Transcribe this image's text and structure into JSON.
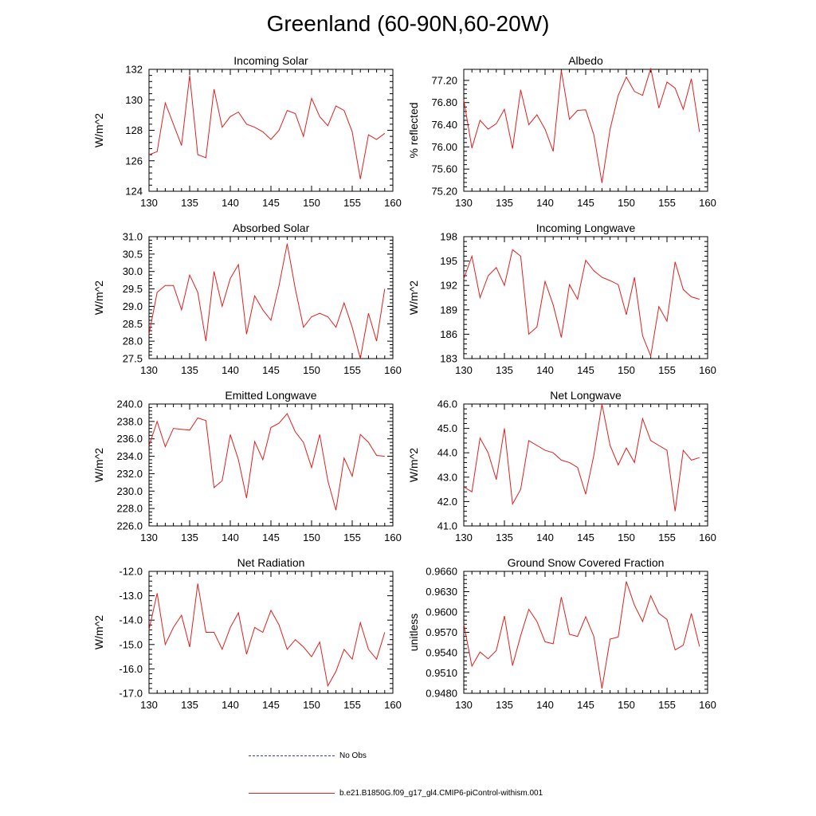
{
  "title": "Greenland (60-90N,60-20W)",
  "legend": {
    "obs_label": "No Obs",
    "obs_color": "#3a3ab0",
    "model_label": "b.e21.B1850G.f09_g17_gl4.CMIP6-piControl-withism.001",
    "model_color": "#e0201e"
  },
  "chart_data": [
    {
      "type": "line",
      "title": "Incoming Solar",
      "ylabel": "W/m^2",
      "xlabel": "",
      "xlim": [
        130,
        160
      ],
      "ylim": [
        124,
        132
      ],
      "xticks": [
        "130",
        "135",
        "140",
        "145",
        "150",
        "155",
        "160"
      ],
      "yticks": [
        "124",
        "126",
        "128",
        "130",
        "132"
      ],
      "x": [
        130,
        131,
        132,
        133,
        134,
        135,
        136,
        137,
        138,
        139,
        140,
        141,
        142,
        143,
        144,
        145,
        146,
        147,
        148,
        149,
        150,
        151,
        152,
        153,
        154,
        155,
        156,
        157,
        158,
        159
      ],
      "series": [
        {
          "values": [
            126.4,
            126.6,
            129.8,
            128.4,
            127.0,
            131.6,
            126.4,
            126.2,
            130.7,
            128.2,
            128.9,
            129.2,
            128.4,
            128.2,
            127.9,
            127.4,
            128.0,
            129.3,
            129.1,
            127.6,
            130.1,
            128.9,
            128.3,
            129.6,
            129.3,
            127.9,
            124.8,
            127.7,
            127.4,
            127.8
          ]
        }
      ]
    },
    {
      "type": "line",
      "title": "Albedo",
      "ylabel": "% reflected",
      "xlabel": "",
      "xlim": [
        130,
        160
      ],
      "ylim": [
        75.2,
        77.4
      ],
      "xticks": [
        "130",
        "135",
        "140",
        "145",
        "150",
        "155",
        "160"
      ],
      "yticks": [
        "75.20",
        "75.60",
        "76.00",
        "76.40",
        "76.80",
        "77.20"
      ],
      "x": [
        130,
        131,
        132,
        133,
        134,
        135,
        136,
        137,
        138,
        139,
        140,
        141,
        142,
        143,
        144,
        145,
        146,
        147,
        148,
        149,
        150,
        151,
        152,
        153,
        154,
        155,
        156,
        157,
        158,
        159
      ],
      "series": [
        {
          "values": [
            76.85,
            75.98,
            76.48,
            76.32,
            76.42,
            76.68,
            75.97,
            77.03,
            76.4,
            76.58,
            76.32,
            75.92,
            77.38,
            76.5,
            76.66,
            76.67,
            76.22,
            75.35,
            76.32,
            76.93,
            77.26,
            77.0,
            76.93,
            77.42,
            76.7,
            77.17,
            77.06,
            76.68,
            77.23,
            76.27
          ]
        }
      ]
    },
    {
      "type": "line",
      "title": "Absorbed Solar",
      "ylabel": "W/m^2",
      "xlabel": "",
      "xlim": [
        130,
        160
      ],
      "ylim": [
        27.5,
        31.0
      ],
      "xticks": [
        "130",
        "135",
        "140",
        "145",
        "150",
        "155",
        "160"
      ],
      "yticks": [
        "27.5",
        "28.0",
        "28.5",
        "29.0",
        "29.5",
        "30.0",
        "30.5",
        "31.0"
      ],
      "x": [
        130,
        131,
        132,
        133,
        134,
        135,
        136,
        137,
        138,
        139,
        140,
        141,
        142,
        143,
        144,
        145,
        146,
        147,
        148,
        149,
        150,
        151,
        152,
        153,
        154,
        155,
        156,
        157,
        158,
        159
      ],
      "series": [
        {
          "values": [
            28.2,
            29.4,
            29.6,
            29.6,
            28.9,
            29.9,
            29.4,
            28.0,
            30.0,
            29.0,
            29.8,
            30.2,
            28.2,
            29.3,
            28.9,
            28.6,
            29.6,
            30.8,
            29.5,
            28.4,
            28.7,
            28.8,
            28.7,
            28.4,
            29.1,
            28.4,
            27.5,
            28.8,
            28.0,
            29.5
          ]
        }
      ]
    },
    {
      "type": "line",
      "title": "Incoming Longwave",
      "ylabel": "W/m^2",
      "xlabel": "",
      "xlim": [
        130,
        160
      ],
      "ylim": [
        183,
        198
      ],
      "xticks": [
        "130",
        "135",
        "140",
        "145",
        "150",
        "155",
        "160"
      ],
      "yticks": [
        "183",
        "186",
        "189",
        "192",
        "195",
        "198"
      ],
      "x": [
        130,
        131,
        132,
        133,
        134,
        135,
        136,
        137,
        138,
        139,
        140,
        141,
        142,
        143,
        144,
        145,
        146,
        147,
        148,
        149,
        150,
        151,
        152,
        153,
        154,
        155,
        156,
        157,
        158,
        159
      ],
      "series": [
        {
          "values": [
            192.8,
            195.6,
            190.5,
            193.2,
            194.2,
            192.0,
            196.4,
            195.6,
            186.0,
            186.9,
            192.5,
            189.6,
            185.6,
            192.1,
            190.3,
            195.1,
            193.8,
            193.0,
            192.6,
            192.1,
            188.4,
            193.0,
            185.8,
            183.3,
            189.4,
            187.6,
            194.9,
            191.5,
            190.6,
            190.3
          ]
        }
      ]
    },
    {
      "type": "line",
      "title": "Emitted Longwave",
      "ylabel": "W/m^2",
      "xlabel": "",
      "xlim": [
        130,
        160
      ],
      "ylim": [
        226,
        240
      ],
      "xticks": [
        "130",
        "135",
        "140",
        "145",
        "150",
        "155",
        "160"
      ],
      "yticks": [
        "226.0",
        "228.0",
        "230.0",
        "232.0",
        "234.0",
        "236.0",
        "238.0",
        "240.0"
      ],
      "x": [
        130,
        131,
        132,
        133,
        134,
        135,
        136,
        137,
        138,
        139,
        140,
        141,
        142,
        143,
        144,
        145,
        146,
        147,
        148,
        149,
        150,
        151,
        152,
        153,
        154,
        155,
        156,
        157,
        158,
        159
      ],
      "series": [
        {
          "values": [
            235.2,
            238.0,
            235.1,
            237.2,
            237.1,
            237.0,
            238.4,
            238.1,
            230.4,
            231.2,
            236.5,
            233.6,
            229.2,
            235.7,
            233.6,
            237.3,
            237.8,
            238.9,
            236.8,
            235.6,
            232.7,
            236.5,
            231.2,
            227.8,
            233.8,
            231.7,
            236.5,
            235.6,
            234.1,
            234.0
          ]
        }
      ]
    },
    {
      "type": "line",
      "title": "Net Longwave",
      "ylabel": "W/m^2",
      "xlabel": "",
      "xlim": [
        130,
        160
      ],
      "ylim": [
        41,
        46
      ],
      "xticks": [
        "130",
        "135",
        "140",
        "145",
        "150",
        "155",
        "160"
      ],
      "yticks": [
        "41.0",
        "42.0",
        "43.0",
        "44.0",
        "45.0",
        "46.0"
      ],
      "x": [
        130,
        131,
        132,
        133,
        134,
        135,
        136,
        137,
        138,
        139,
        140,
        141,
        142,
        143,
        144,
        145,
        146,
        147,
        148,
        149,
        150,
        151,
        152,
        153,
        154,
        155,
        156,
        157,
        158,
        159
      ],
      "series": [
        {
          "values": [
            42.6,
            42.4,
            44.6,
            44.0,
            42.9,
            45.0,
            41.9,
            42.5,
            44.5,
            44.3,
            44.1,
            44.0,
            43.7,
            43.6,
            43.4,
            42.3,
            43.9,
            46.0,
            44.3,
            43.5,
            44.2,
            43.6,
            45.4,
            44.5,
            44.3,
            44.1,
            41.6,
            44.1,
            43.7,
            43.8
          ]
        }
      ]
    },
    {
      "type": "line",
      "title": "Net Radiation",
      "ylabel": "W/m^2",
      "xlabel": "",
      "xlim": [
        130,
        160
      ],
      "ylim": [
        -17,
        -12
      ],
      "xticks": [
        "130",
        "135",
        "140",
        "145",
        "150",
        "155",
        "160"
      ],
      "yticks": [
        "-17.0",
        "-16.0",
        "-15.0",
        "-14.0",
        "-13.0",
        "-12.0"
      ],
      "x": [
        130,
        131,
        132,
        133,
        134,
        135,
        136,
        137,
        138,
        139,
        140,
        141,
        142,
        143,
        144,
        145,
        146,
        147,
        148,
        149,
        150,
        151,
        152,
        153,
        154,
        155,
        156,
        157,
        158,
        159
      ],
      "series": [
        {
          "values": [
            -14.4,
            -12.9,
            -15.0,
            -14.3,
            -13.8,
            -15.1,
            -12.5,
            -14.5,
            -14.5,
            -15.2,
            -14.3,
            -13.7,
            -15.4,
            -14.3,
            -14.5,
            -13.6,
            -14.2,
            -15.2,
            -14.8,
            -15.1,
            -15.5,
            -14.9,
            -16.7,
            -16.1,
            -15.2,
            -15.6,
            -14.1,
            -15.2,
            -15.6,
            -14.5
          ]
        }
      ]
    },
    {
      "type": "line",
      "title": "Ground Snow Covered Fraction",
      "ylabel": "unitless",
      "xlabel": "",
      "xlim": [
        130,
        160
      ],
      "ylim": [
        0.948,
        0.966
      ],
      "xticks": [
        "130",
        "135",
        "140",
        "145",
        "150",
        "155",
        "160"
      ],
      "yticks": [
        "0.9480",
        "0.9510",
        "0.9540",
        "0.9570",
        "0.9600",
        "0.9630",
        "0.9660"
      ],
      "x": [
        130,
        131,
        132,
        133,
        134,
        135,
        136,
        137,
        138,
        139,
        140,
        141,
        142,
        143,
        144,
        145,
        146,
        147,
        148,
        149,
        150,
        151,
        152,
        153,
        154,
        155,
        156,
        157,
        158,
        159
      ],
      "series": [
        {
          "values": [
            0.9582,
            0.952,
            0.9541,
            0.9531,
            0.9543,
            0.9594,
            0.9521,
            0.9565,
            0.9604,
            0.9586,
            0.9556,
            0.9553,
            0.9622,
            0.9567,
            0.9564,
            0.9593,
            0.9564,
            0.9487,
            0.956,
            0.9563,
            0.9645,
            0.961,
            0.9586,
            0.9624,
            0.9598,
            0.9589,
            0.9544,
            0.9551,
            0.9598,
            0.9549
          ]
        }
      ]
    }
  ]
}
